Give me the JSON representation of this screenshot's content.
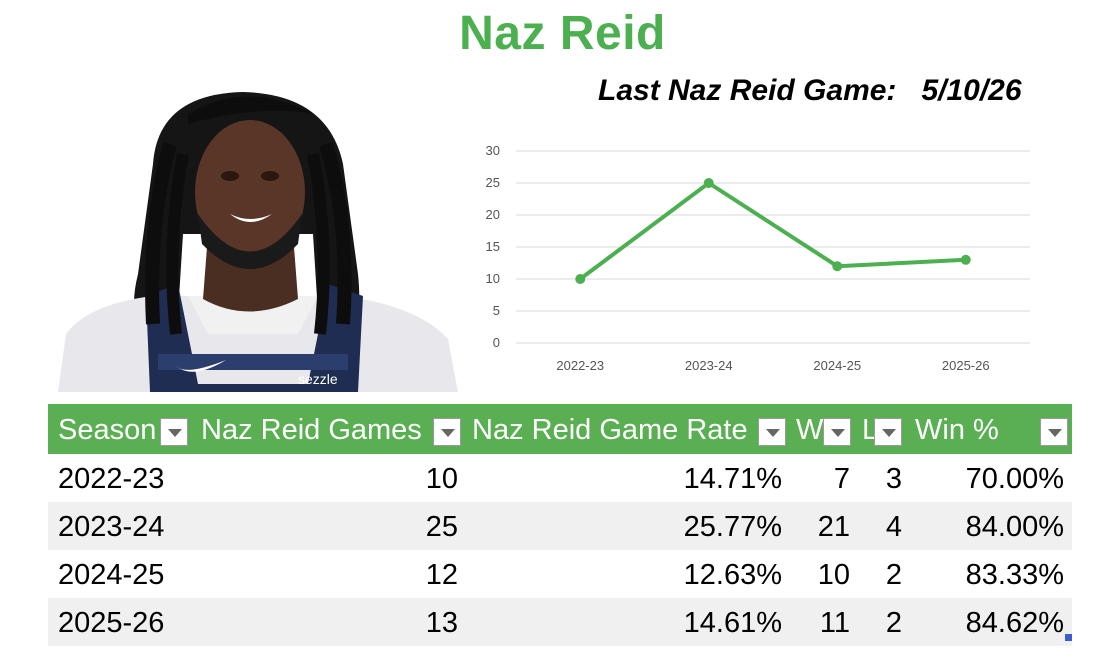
{
  "title": "Naz Reid",
  "last_game": {
    "label": "Last Naz Reid Game:",
    "date": "5/10/26"
  },
  "photo": {
    "sponsor": "sezzle"
  },
  "colors": {
    "accent": "#4caf50",
    "header_bg": "#5aaf52"
  },
  "chart_data": {
    "type": "line",
    "categories": [
      "2022-23",
      "2023-24",
      "2024-25",
      "2025-26"
    ],
    "values": [
      10,
      25,
      12,
      13
    ],
    "ylim": [
      0,
      30
    ],
    "yticks": [
      "0",
      "5",
      "10",
      "15",
      "20",
      "25",
      "30"
    ],
    "grid": true,
    "title": "",
    "xlabel": "",
    "ylabel": ""
  },
  "table": {
    "headers": [
      "Season",
      "Naz Reid Games",
      "Naz Reid Game Rate",
      "W",
      "L",
      "Win %"
    ],
    "rows": [
      [
        "2022-23",
        "10",
        "14.71%",
        "7",
        "3",
        "70.00%"
      ],
      [
        "2023-24",
        "25",
        "25.77%",
        "21",
        "4",
        "84.00%"
      ],
      [
        "2024-25",
        "12",
        "12.63%",
        "10",
        "2",
        "83.33%"
      ],
      [
        "2025-26",
        "13",
        "14.61%",
        "11",
        "2",
        "84.62%"
      ]
    ]
  }
}
